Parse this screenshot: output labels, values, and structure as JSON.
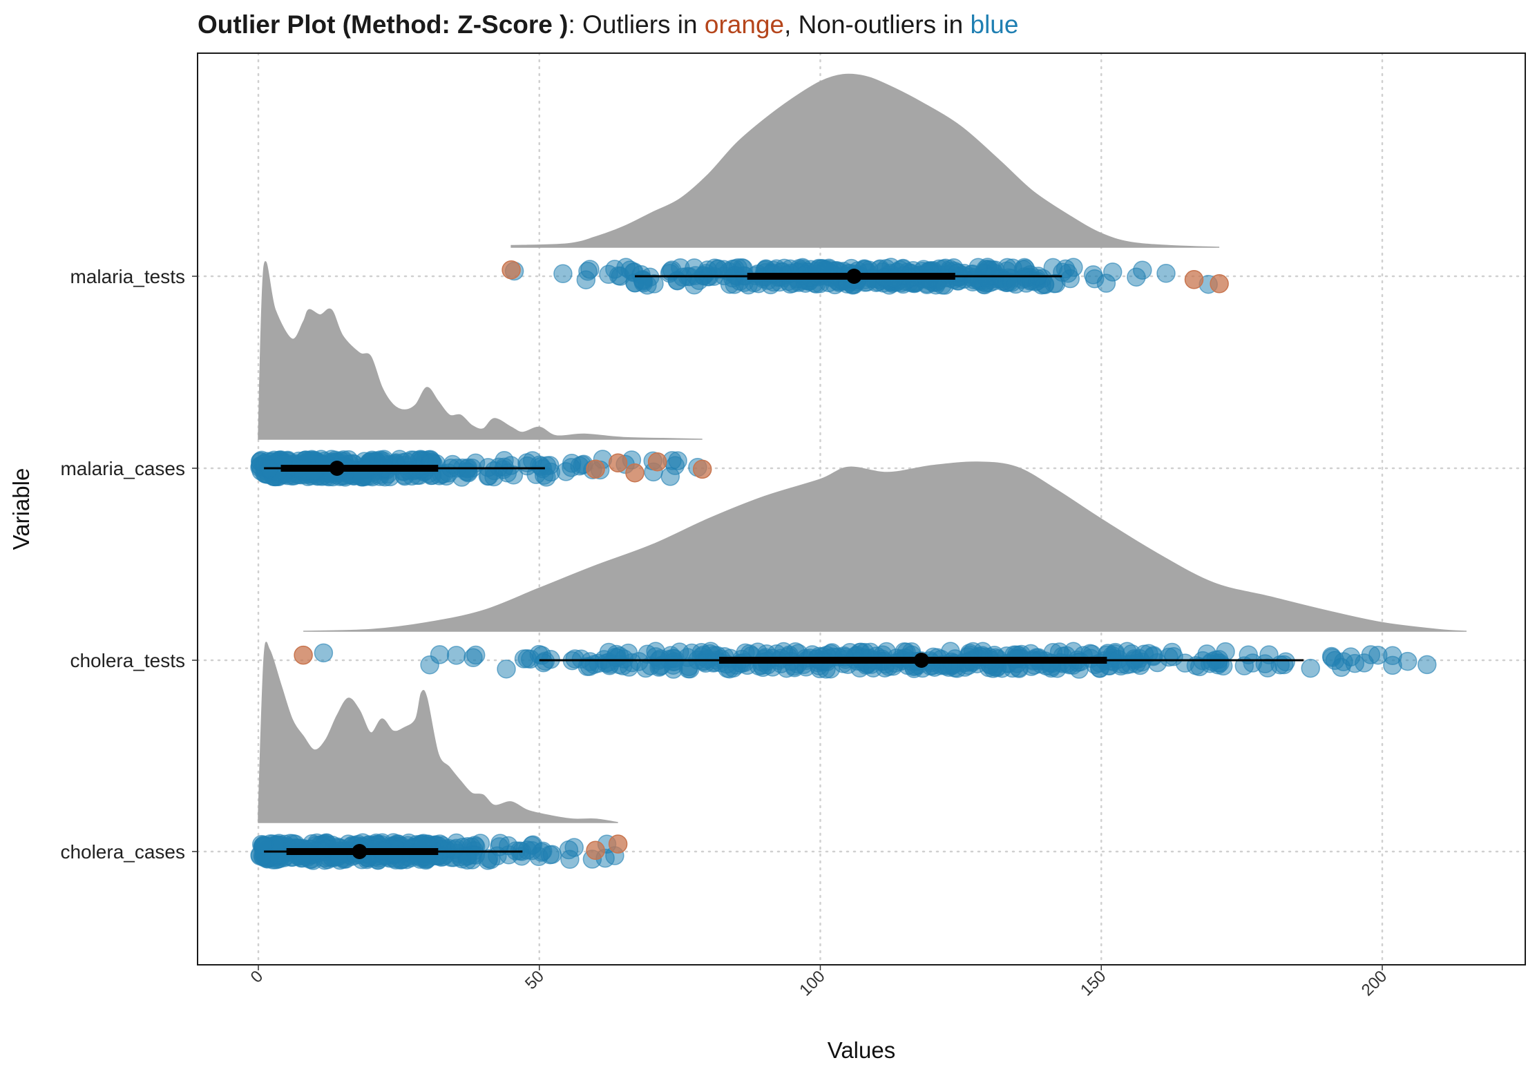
{
  "title": {
    "method_part": "Outlier Plot (Method: Z-Score )",
    "colon": ":",
    "seg1": " Outliers in ",
    "orange_word": "orange",
    "seg2": ", Non-outliers in ",
    "blue_word": "blue"
  },
  "colors": {
    "outlier": "#C8754F",
    "outlier_title": "#B5451B",
    "nonoutlier": "#1F7FB2",
    "density": "#A6A6A6",
    "summary": "#000000"
  },
  "chart_data": {
    "type": "raincloud",
    "xlabel": "Values",
    "ylabel": "Variable",
    "xlim": [
      -11,
      225
    ],
    "x_ticks": [
      "0",
      "50",
      "100",
      "150",
      "200"
    ],
    "x_tick_values": [
      0,
      50,
      100,
      150,
      200
    ],
    "grid": "dotted major gridlines on x ticks and variable rows",
    "variables": [
      {
        "name": "malaria_tests",
        "range": [
          45,
          171
        ],
        "median": 106,
        "q1": 87,
        "q3": 124,
        "whisker": [
          67,
          143
        ],
        "outliers": [
          45,
          166.5,
          171
        ],
        "density": [
          [
            45,
            0.01
          ],
          [
            55,
            0.02
          ],
          [
            60,
            0.06
          ],
          [
            65,
            0.12
          ],
          [
            70,
            0.2
          ],
          [
            75,
            0.28
          ],
          [
            80,
            0.42
          ],
          [
            85,
            0.6
          ],
          [
            90,
            0.74
          ],
          [
            95,
            0.86
          ],
          [
            100,
            0.96
          ],
          [
            104,
            1.0
          ],
          [
            108,
            0.99
          ],
          [
            112,
            0.94
          ],
          [
            118,
            0.84
          ],
          [
            125,
            0.7
          ],
          [
            132,
            0.5
          ],
          [
            138,
            0.32
          ],
          [
            145,
            0.17
          ],
          [
            150,
            0.08
          ],
          [
            155,
            0.03
          ],
          [
            162,
            0.01
          ],
          [
            171,
            0.0
          ]
        ]
      },
      {
        "name": "malaria_cases",
        "range": [
          0,
          79
        ],
        "median": 14,
        "q1": 4,
        "q3": 32,
        "whisker": [
          1,
          51
        ],
        "outliers": [
          60,
          64,
          67,
          71,
          79
        ],
        "density": [
          [
            0,
            0.02
          ],
          [
            1,
            1.0
          ],
          [
            3,
            0.75
          ],
          [
            6,
            0.58
          ],
          [
            8,
            0.68
          ],
          [
            9,
            0.75
          ],
          [
            11,
            0.72
          ],
          [
            13,
            0.75
          ],
          [
            15,
            0.6
          ],
          [
            18,
            0.5
          ],
          [
            20,
            0.48
          ],
          [
            22,
            0.3
          ],
          [
            24,
            0.2
          ],
          [
            26,
            0.17
          ],
          [
            28,
            0.2
          ],
          [
            30,
            0.3
          ],
          [
            32,
            0.22
          ],
          [
            34,
            0.14
          ],
          [
            36,
            0.14
          ],
          [
            38,
            0.08
          ],
          [
            40,
            0.06
          ],
          [
            42,
            0.12
          ],
          [
            45,
            0.07
          ],
          [
            47,
            0.04
          ],
          [
            50,
            0.07
          ],
          [
            53,
            0.02
          ],
          [
            58,
            0.03
          ],
          [
            65,
            0.01
          ],
          [
            72,
            0.005
          ],
          [
            79,
            0.0
          ]
        ]
      },
      {
        "name": "cholera_tests",
        "range": [
          8,
          215
        ],
        "median": 118,
        "q1": 82,
        "q3": 151,
        "whisker": [
          50,
          186
        ],
        "outliers": [
          8
        ],
        "density": [
          [
            8,
            0.0
          ],
          [
            20,
            0.01
          ],
          [
            30,
            0.05
          ],
          [
            40,
            0.12
          ],
          [
            50,
            0.25
          ],
          [
            60,
            0.38
          ],
          [
            70,
            0.5
          ],
          [
            80,
            0.65
          ],
          [
            90,
            0.78
          ],
          [
            100,
            0.88
          ],
          [
            105,
            0.95
          ],
          [
            112,
            0.92
          ],
          [
            120,
            0.96
          ],
          [
            128,
            0.98
          ],
          [
            135,
            0.95
          ],
          [
            142,
            0.82
          ],
          [
            150,
            0.65
          ],
          [
            160,
            0.45
          ],
          [
            170,
            0.28
          ],
          [
            180,
            0.2
          ],
          [
            190,
            0.12
          ],
          [
            200,
            0.05
          ],
          [
            210,
            0.01
          ],
          [
            215,
            0.0
          ]
        ]
      },
      {
        "name": "cholera_cases",
        "range": [
          0,
          64
        ],
        "median": 18,
        "q1": 5,
        "q3": 32,
        "whisker": [
          1,
          47
        ],
        "outliers": [
          60,
          64
        ],
        "density": [
          [
            0,
            0.05
          ],
          [
            1,
            0.95
          ],
          [
            2,
            1.0
          ],
          [
            4,
            0.8
          ],
          [
            6,
            0.6
          ],
          [
            8,
            0.5
          ],
          [
            10,
            0.42
          ],
          [
            12,
            0.48
          ],
          [
            14,
            0.62
          ],
          [
            16,
            0.72
          ],
          [
            18,
            0.65
          ],
          [
            20,
            0.52
          ],
          [
            22,
            0.6
          ],
          [
            24,
            0.53
          ],
          [
            26,
            0.55
          ],
          [
            28,
            0.6
          ],
          [
            29,
            0.75
          ],
          [
            30,
            0.72
          ],
          [
            32,
            0.4
          ],
          [
            34,
            0.32
          ],
          [
            36,
            0.24
          ],
          [
            38,
            0.17
          ],
          [
            40,
            0.16
          ],
          [
            42,
            0.1
          ],
          [
            45,
            0.12
          ],
          [
            48,
            0.07
          ],
          [
            52,
            0.04
          ],
          [
            56,
            0.02
          ],
          [
            60,
            0.02
          ],
          [
            64,
            0.0
          ]
        ]
      }
    ]
  }
}
